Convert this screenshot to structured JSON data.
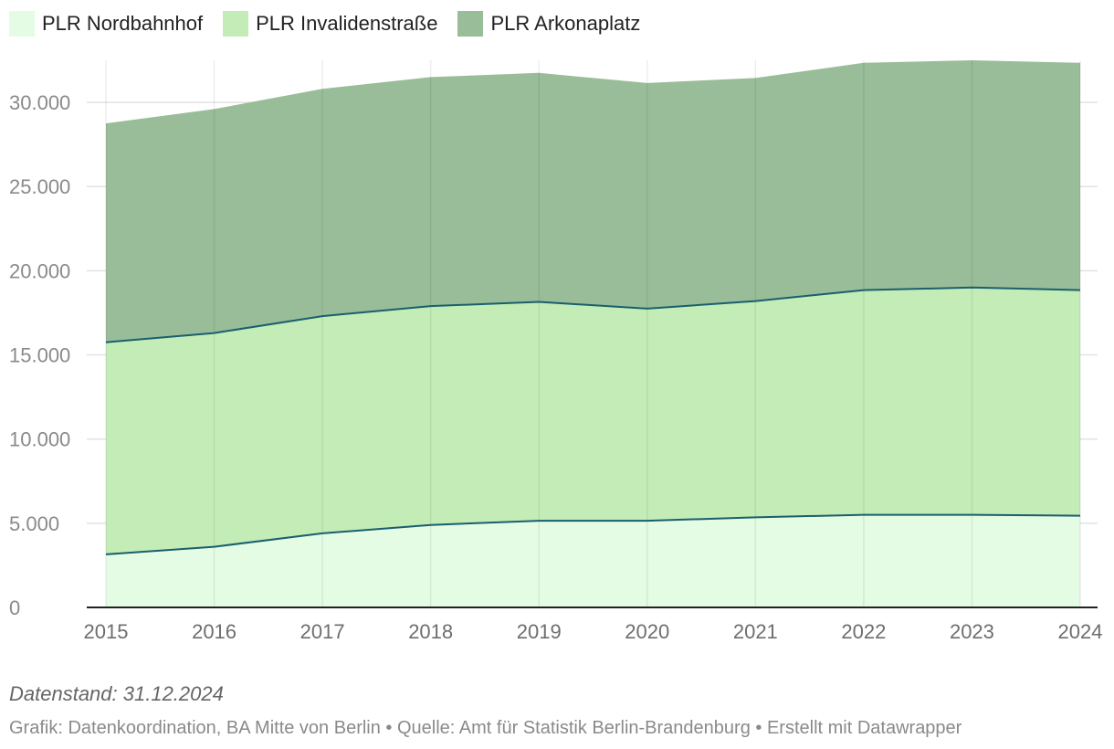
{
  "legend": [
    {
      "label": "PLR Nordbahnhof",
      "color": "#e4fce3"
    },
    {
      "label": "PLR Invalidenstraße",
      "color": "#c3ecb6"
    },
    {
      "label": "PLR Arkonaplatz",
      "color": "#99bd98"
    }
  ],
  "chart_data": {
    "type": "area",
    "stacked": true,
    "title": "",
    "xlabel": "",
    "ylabel": "",
    "categories": [
      "2015",
      "2016",
      "2017",
      "2018",
      "2019",
      "2020",
      "2021",
      "2022",
      "2023",
      "2024"
    ],
    "series": [
      {
        "name": "PLR Nordbahnhof",
        "color": "#e4fce3",
        "values": [
          3150,
          3600,
          4400,
          4900,
          5150,
          5150,
          5350,
          5500,
          5500,
          5450
        ]
      },
      {
        "name": "PLR Invalidenstraße",
        "color": "#c3ecb6",
        "values": [
          12600,
          12700,
          12900,
          13000,
          13000,
          12600,
          12850,
          13350,
          13500,
          13400
        ]
      },
      {
        "name": "PLR Arkonaplatz",
        "color": "#99bd98",
        "values": [
          13000,
          13300,
          13500,
          13600,
          13600,
          13400,
          13250,
          13500,
          13500,
          13500
        ]
      }
    ],
    "ylim": [
      0,
      32500
    ],
    "yticks": [
      0,
      5000,
      10000,
      15000,
      20000,
      25000,
      30000
    ],
    "ytick_labels": [
      "0",
      "5.000",
      "10.000",
      "15.000",
      "20.000",
      "25.000",
      "30.000"
    ],
    "grid": true,
    "line_color": "#1a5f6e",
    "legend_position": "top-left"
  },
  "footer": {
    "note": "Datenstand: 31.12.2024",
    "source": "Grafik: Datenkoordination, BA Mitte von Berlin • Quelle: Amt für Statistik Berlin-Brandenburg • Erstellt mit Datawrapper"
  }
}
